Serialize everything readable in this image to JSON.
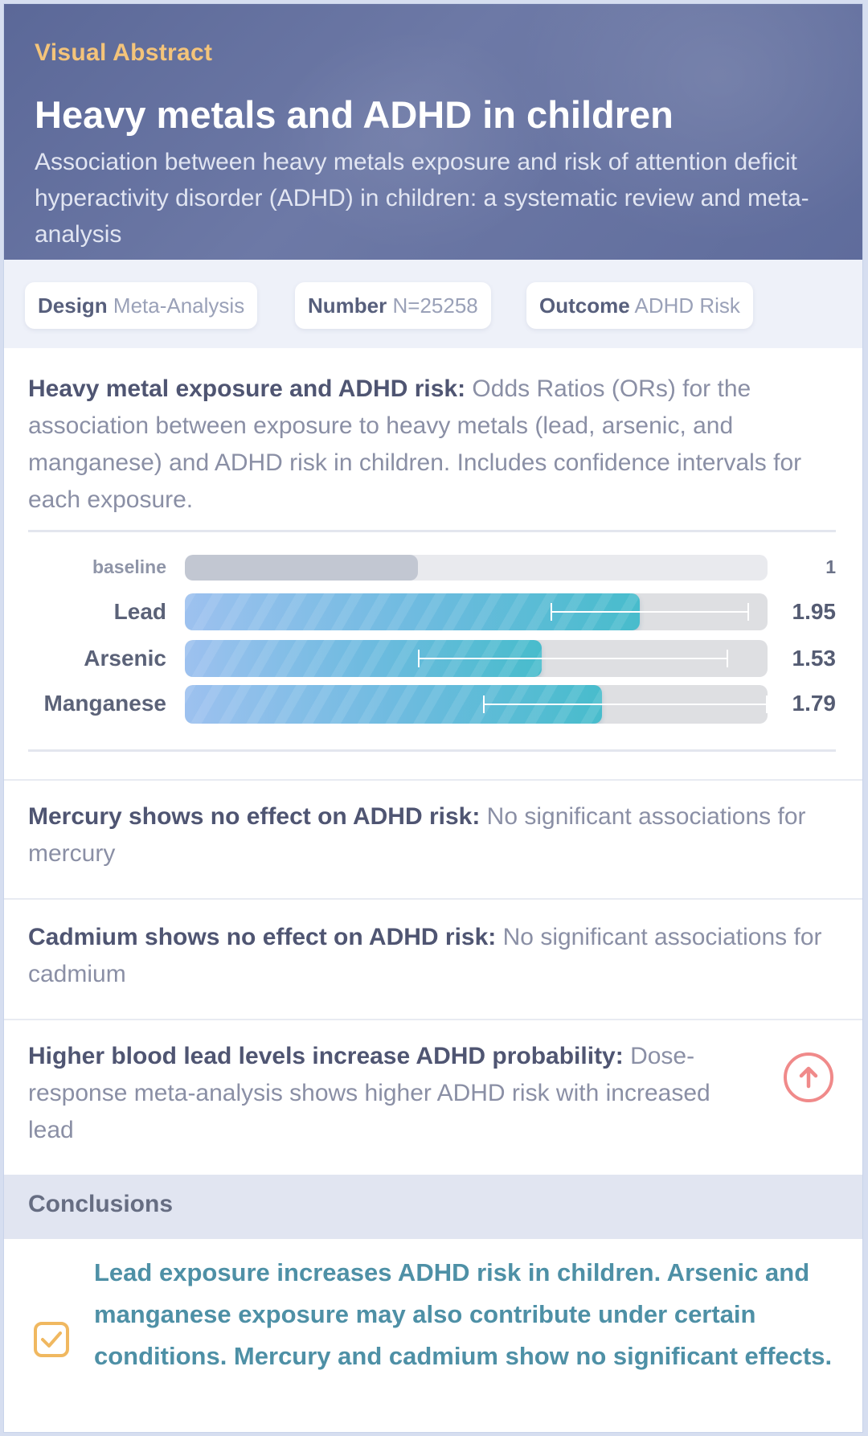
{
  "header": {
    "kicker": "Visual Abstract",
    "title": "Heavy metals and ADHD in children",
    "subtitle": "Association between heavy metals exposure and risk of attention deficit hyperactivity disorder (ADHD) in children: a systematic review and meta-analysis"
  },
  "chips": [
    {
      "key": "Design",
      "value": "Meta-Analysis"
    },
    {
      "key": "Number",
      "value": "N=25258"
    },
    {
      "key": "Outcome",
      "value": "ADHD Risk"
    }
  ],
  "finding1": {
    "bold": "Heavy metal exposure and ADHD risk:",
    "text": " Odds Ratios (ORs) for the association between exposure to heavy metals (lead, arsenic, and manganese) and ADHD risk in children. Includes confidence intervals for each exposure."
  },
  "chart_data": {
    "type": "bar",
    "orientation": "horizontal",
    "scale_max": 2.5,
    "baseline": {
      "label": "baseline",
      "value": 1,
      "value_label": "1"
    },
    "series": [
      {
        "name": "OR",
        "values": [
          1.95,
          1.53,
          1.79
        ]
      }
    ],
    "categories": [
      "Lead",
      "Arsenic",
      "Manganese"
    ],
    "value_labels": [
      "1.95",
      "1.53",
      "1.79"
    ],
    "ci": [
      [
        1.57,
        2.42
      ],
      [
        1.0,
        2.33
      ],
      [
        1.28,
        2.5
      ]
    ]
  },
  "finding2": {
    "bold": "Mercury shows no effect on ADHD risk:",
    "text": " No significant associations for mercury"
  },
  "finding3": {
    "bold": "Cadmium shows no effect on ADHD risk:",
    "text": " No significant associations for cadmium"
  },
  "finding4": {
    "bold": "Higher blood lead levels increase ADHD probability:",
    "text": " Dose-response meta-analysis shows higher ADHD risk with increased lead",
    "icon": "arrow-up-circle-icon",
    "icon_color": "#f08a8a"
  },
  "conclusions": {
    "heading": "Conclusions",
    "text": "Lead exposure increases ADHD risk in children. Arsenic and manganese exposure may also contribute under certain conditions. Mercury and cadmium show no significant effects.",
    "icon": "checkbox-icon",
    "icon_color": "#f0b860"
  }
}
